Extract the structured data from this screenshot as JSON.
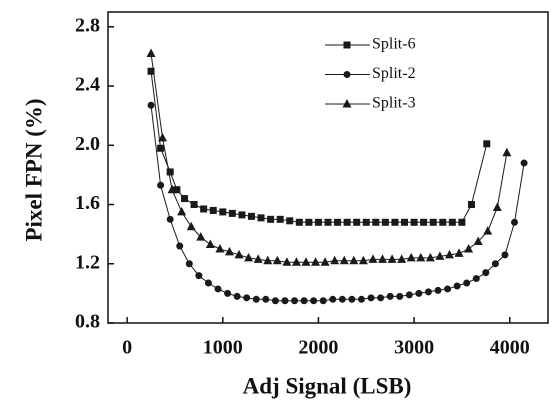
{
  "chart_data": {
    "type": "line",
    "xlabel": "Adj Signal (LSB)",
    "ylabel": "Pixel FPN (%)",
    "xlim": [
      -200,
      4400
    ],
    "ylim": [
      0.8,
      2.9
    ],
    "xticks": [
      0,
      1000,
      2000,
      3000,
      4000
    ],
    "yticks": [
      0.8,
      1.2,
      1.6,
      {
        "value": 2,
        "label": "2.0"
      },
      2.4,
      2.8
    ],
    "legend": "upper right",
    "series": [
      {
        "name": "Split-6",
        "color": "#1a1a1a",
        "marker": "square",
        "x": [
          250,
          350,
          450,
          520,
          600,
          700,
          800,
          900,
          1000,
          1100,
          1200,
          1300,
          1400,
          1500,
          1600,
          1700,
          1800,
          1900,
          2000,
          2100,
          2200,
          2300,
          2400,
          2500,
          2600,
          2700,
          2800,
          2900,
          3000,
          3100,
          3200,
          3300,
          3400,
          3500,
          3600,
          3760
        ],
        "values": [
          2.5,
          1.98,
          1.82,
          1.7,
          1.64,
          1.6,
          1.57,
          1.56,
          1.55,
          1.54,
          1.53,
          1.52,
          1.51,
          1.5,
          1.5,
          1.49,
          1.48,
          1.48,
          1.48,
          1.48,
          1.48,
          1.48,
          1.48,
          1.48,
          1.48,
          1.48,
          1.48,
          1.48,
          1.48,
          1.48,
          1.48,
          1.48,
          1.48,
          1.48,
          1.6,
          2.01
        ]
      },
      {
        "name": "Split-2",
        "color": "#1a1a1a",
        "marker": "circle",
        "x": [
          250,
          350,
          450,
          550,
          650,
          750,
          850,
          950,
          1050,
          1150,
          1250,
          1350,
          1450,
          1550,
          1650,
          1750,
          1850,
          1950,
          2050,
          2150,
          2250,
          2350,
          2450,
          2550,
          2650,
          2750,
          2850,
          2950,
          3050,
          3150,
          3250,
          3350,
          3450,
          3550,
          3650,
          3750,
          3850,
          3950,
          4050,
          4150
        ],
        "values": [
          2.27,
          1.73,
          1.5,
          1.32,
          1.2,
          1.12,
          1.07,
          1.03,
          1.0,
          0.98,
          0.97,
          0.96,
          0.96,
          0.95,
          0.95,
          0.95,
          0.95,
          0.95,
          0.95,
          0.96,
          0.96,
          0.96,
          0.96,
          0.97,
          0.97,
          0.98,
          0.98,
          0.99,
          1.0,
          1.01,
          1.02,
          1.03,
          1.05,
          1.07,
          1.1,
          1.14,
          1.2,
          1.26,
          1.48,
          1.88
        ]
      },
      {
        "name": "Split-3",
        "color": "#1a1a1a",
        "marker": "triangle",
        "x": [
          250,
          370,
          470,
          570,
          670,
          770,
          870,
          970,
          1070,
          1170,
          1270,
          1370,
          1470,
          1570,
          1670,
          1770,
          1870,
          1970,
          2070,
          2170,
          2270,
          2370,
          2470,
          2570,
          2670,
          2770,
          2870,
          2970,
          3070,
          3170,
          3270,
          3370,
          3470,
          3570,
          3670,
          3770,
          3870,
          3970
        ],
        "values": [
          2.62,
          2.05,
          1.7,
          1.55,
          1.45,
          1.38,
          1.33,
          1.3,
          1.28,
          1.26,
          1.24,
          1.23,
          1.22,
          1.22,
          1.21,
          1.21,
          1.21,
          1.21,
          1.21,
          1.22,
          1.22,
          1.22,
          1.22,
          1.23,
          1.23,
          1.23,
          1.23,
          1.24,
          1.24,
          1.24,
          1.25,
          1.26,
          1.27,
          1.3,
          1.35,
          1.42,
          1.58,
          1.95
        ]
      }
    ]
  }
}
